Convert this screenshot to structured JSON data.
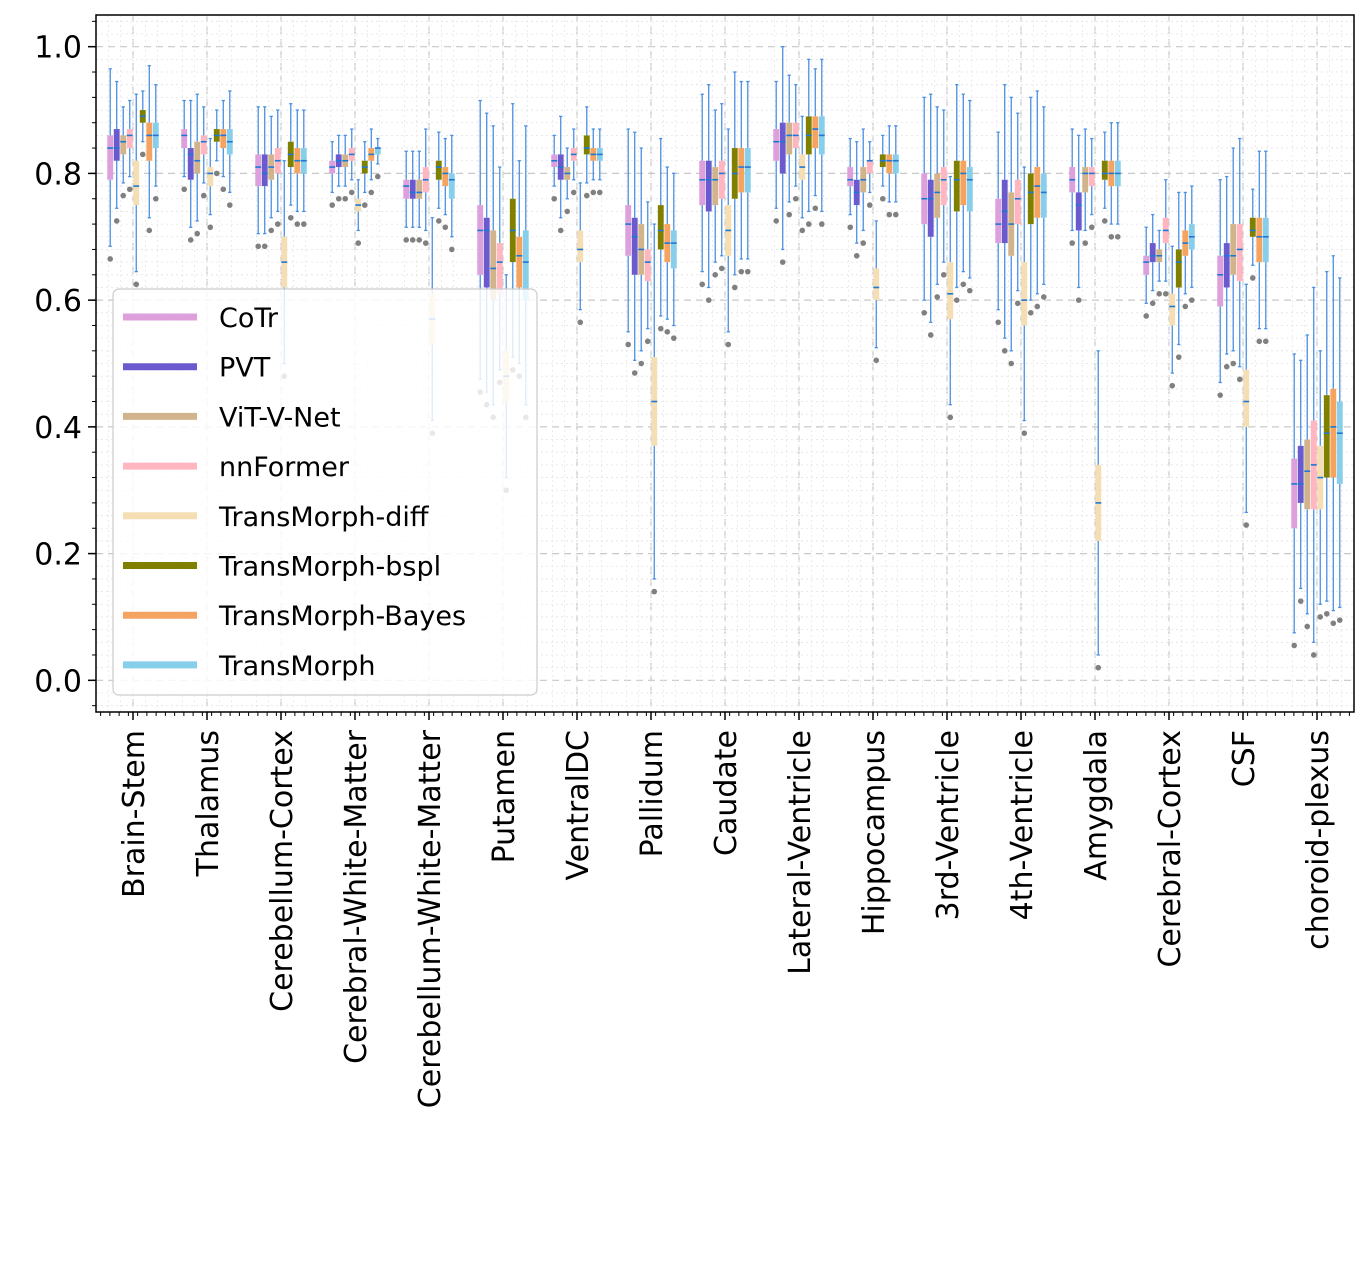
{
  "chart_data": {
    "type": "box",
    "categories": [
      "Brain-Stem",
      "Thalamus",
      "Cerebellum-Cortex",
      "Cerebral-White-Matter",
      "Cerebellum-White-Matter",
      "Putamen",
      "VentralDC",
      "Pallidum",
      "Caudate",
      "Lateral-Ventricle",
      "Hippocampus",
      "3rd-Ventricle",
      "4th-Ventricle",
      "Amygdala",
      "Cerebral-Cortex",
      "CSF",
      "choroid-plexus"
    ],
    "ylim": [
      -0.05,
      1.05
    ],
    "yticks": [
      "0.0",
      "0.2",
      "0.4",
      "0.6",
      "0.8",
      "1.0"
    ],
    "ytick_values": [
      0.0,
      0.2,
      0.4,
      0.6,
      0.8,
      1.0
    ],
    "grid": true,
    "legend_position": "lower-left",
    "series": [
      {
        "name": "CoTr",
        "color": "#dda0dd",
        "median": [
          0.84,
          0.86,
          0.81,
          0.81,
          0.78,
          0.71,
          0.82,
          0.72,
          0.79,
          0.85,
          0.79,
          0.76,
          0.72,
          0.79,
          0.66,
          0.64,
          0.31
        ],
        "q1": [
          0.79,
          0.84,
          0.78,
          0.8,
          0.76,
          0.64,
          0.81,
          0.67,
          0.75,
          0.82,
          0.78,
          0.72,
          0.69,
          0.77,
          0.64,
          0.59,
          0.24
        ],
        "q3": [
          0.86,
          0.87,
          0.83,
          0.82,
          0.79,
          0.75,
          0.83,
          0.75,
          0.82,
          0.87,
          0.81,
          0.8,
          0.76,
          0.81,
          0.67,
          0.67,
          0.35
        ]
      },
      {
        "name": "PVT",
        "color": "#6a5acd",
        "median": [
          0.84,
          0.83,
          0.8,
          0.82,
          0.77,
          0.71,
          0.81,
          0.7,
          0.79,
          0.85,
          0.77,
          0.76,
          0.74,
          0.75,
          0.67,
          0.67,
          0.31
        ],
        "q1": [
          0.82,
          0.79,
          0.78,
          0.81,
          0.76,
          0.62,
          0.79,
          0.64,
          0.74,
          0.8,
          0.75,
          0.7,
          0.69,
          0.71,
          0.66,
          0.62,
          0.28
        ],
        "q3": [
          0.87,
          0.84,
          0.83,
          0.83,
          0.79,
          0.73,
          0.83,
          0.73,
          0.82,
          0.88,
          0.79,
          0.79,
          0.79,
          0.77,
          0.69,
          0.69,
          0.37
        ]
      },
      {
        "name": "ViT-V-Net",
        "color": "#d2b48c",
        "median": [
          0.85,
          0.82,
          0.81,
          0.82,
          0.77,
          0.65,
          0.8,
          0.68,
          0.79,
          0.86,
          0.79,
          0.77,
          0.72,
          0.8,
          0.67,
          0.67,
          0.33
        ],
        "q1": [
          0.83,
          0.8,
          0.79,
          0.81,
          0.76,
          0.6,
          0.79,
          0.64,
          0.75,
          0.83,
          0.77,
          0.73,
          0.67,
          0.77,
          0.66,
          0.64,
          0.27
        ],
        "q3": [
          0.86,
          0.85,
          0.83,
          0.83,
          0.79,
          0.71,
          0.81,
          0.72,
          0.81,
          0.88,
          0.81,
          0.8,
          0.77,
          0.81,
          0.68,
          0.72,
          0.38
        ]
      },
      {
        "name": "nnFormer",
        "color": "#ffb6c1",
        "median": [
          0.86,
          0.85,
          0.82,
          0.83,
          0.79,
          0.66,
          0.83,
          0.66,
          0.8,
          0.86,
          0.82,
          0.79,
          0.76,
          0.8,
          0.71,
          0.68,
          0.34
        ],
        "q1": [
          0.84,
          0.83,
          0.8,
          0.82,
          0.77,
          0.61,
          0.82,
          0.63,
          0.76,
          0.84,
          0.8,
          0.75,
          0.72,
          0.78,
          0.69,
          0.63,
          0.27
        ],
        "q3": [
          0.87,
          0.86,
          0.84,
          0.84,
          0.81,
          0.69,
          0.84,
          0.68,
          0.82,
          0.88,
          0.82,
          0.81,
          0.79,
          0.81,
          0.73,
          0.72,
          0.41
        ]
      },
      {
        "name": "TransMorph-diff",
        "color": "#f5deb3",
        "median": [
          0.78,
          0.8,
          0.66,
          0.75,
          0.57,
          0.48,
          0.68,
          0.44,
          0.71,
          0.81,
          0.62,
          0.61,
          0.6,
          0.28,
          0.59,
          0.44,
          0.32
        ],
        "q1": [
          0.75,
          0.78,
          0.62,
          0.74,
          0.53,
          0.44,
          0.66,
          0.37,
          0.67,
          0.79,
          0.6,
          0.57,
          0.56,
          0.22,
          0.56,
          0.4,
          0.27
        ],
        "q3": [
          0.82,
          0.81,
          0.7,
          0.76,
          0.61,
          0.52,
          0.71,
          0.51,
          0.75,
          0.83,
          0.65,
          0.66,
          0.66,
          0.34,
          0.61,
          0.49,
          0.37
        ]
      },
      {
        "name": "TransMorph-bspl",
        "color": "#808000",
        "median": [
          0.89,
          0.86,
          0.83,
          0.81,
          0.81,
          0.71,
          0.84,
          0.71,
          0.8,
          0.86,
          0.82,
          0.79,
          0.77,
          0.8,
          0.66,
          0.71,
          0.39
        ],
        "q1": [
          0.88,
          0.85,
          0.81,
          0.8,
          0.79,
          0.66,
          0.83,
          0.68,
          0.76,
          0.83,
          0.81,
          0.74,
          0.72,
          0.79,
          0.62,
          0.7,
          0.32
        ],
        "q3": [
          0.9,
          0.87,
          0.85,
          0.82,
          0.82,
          0.76,
          0.86,
          0.75,
          0.84,
          0.89,
          0.83,
          0.82,
          0.8,
          0.82,
          0.68,
          0.73,
          0.45
        ]
      },
      {
        "name": "TransMorph-Bayes",
        "color": "#f4a460",
        "median": [
          0.86,
          0.86,
          0.82,
          0.83,
          0.8,
          0.67,
          0.83,
          0.69,
          0.81,
          0.87,
          0.82,
          0.8,
          0.78,
          0.8,
          0.69,
          0.7,
          0.4
        ],
        "q1": [
          0.82,
          0.84,
          0.8,
          0.82,
          0.78,
          0.62,
          0.82,
          0.66,
          0.77,
          0.84,
          0.8,
          0.75,
          0.73,
          0.78,
          0.67,
          0.66,
          0.32
        ],
        "q3": [
          0.88,
          0.87,
          0.84,
          0.84,
          0.81,
          0.7,
          0.84,
          0.72,
          0.84,
          0.89,
          0.83,
          0.82,
          0.81,
          0.82,
          0.71,
          0.73,
          0.46
        ]
      },
      {
        "name": "TransMorph",
        "color": "#87ceeb",
        "median": [
          0.86,
          0.85,
          0.82,
          0.84,
          0.79,
          0.66,
          0.83,
          0.69,
          0.81,
          0.86,
          0.82,
          0.79,
          0.77,
          0.8,
          0.7,
          0.7,
          0.39
        ],
        "q1": [
          0.84,
          0.83,
          0.8,
          0.83,
          0.76,
          0.6,
          0.82,
          0.65,
          0.77,
          0.83,
          0.8,
          0.74,
          0.73,
          0.78,
          0.68,
          0.66,
          0.31
        ],
        "q3": [
          0.88,
          0.87,
          0.84,
          0.84,
          0.8,
          0.71,
          0.84,
          0.71,
          0.84,
          0.89,
          0.83,
          0.81,
          0.8,
          0.82,
          0.72,
          0.73,
          0.44
        ]
      }
    ]
  }
}
